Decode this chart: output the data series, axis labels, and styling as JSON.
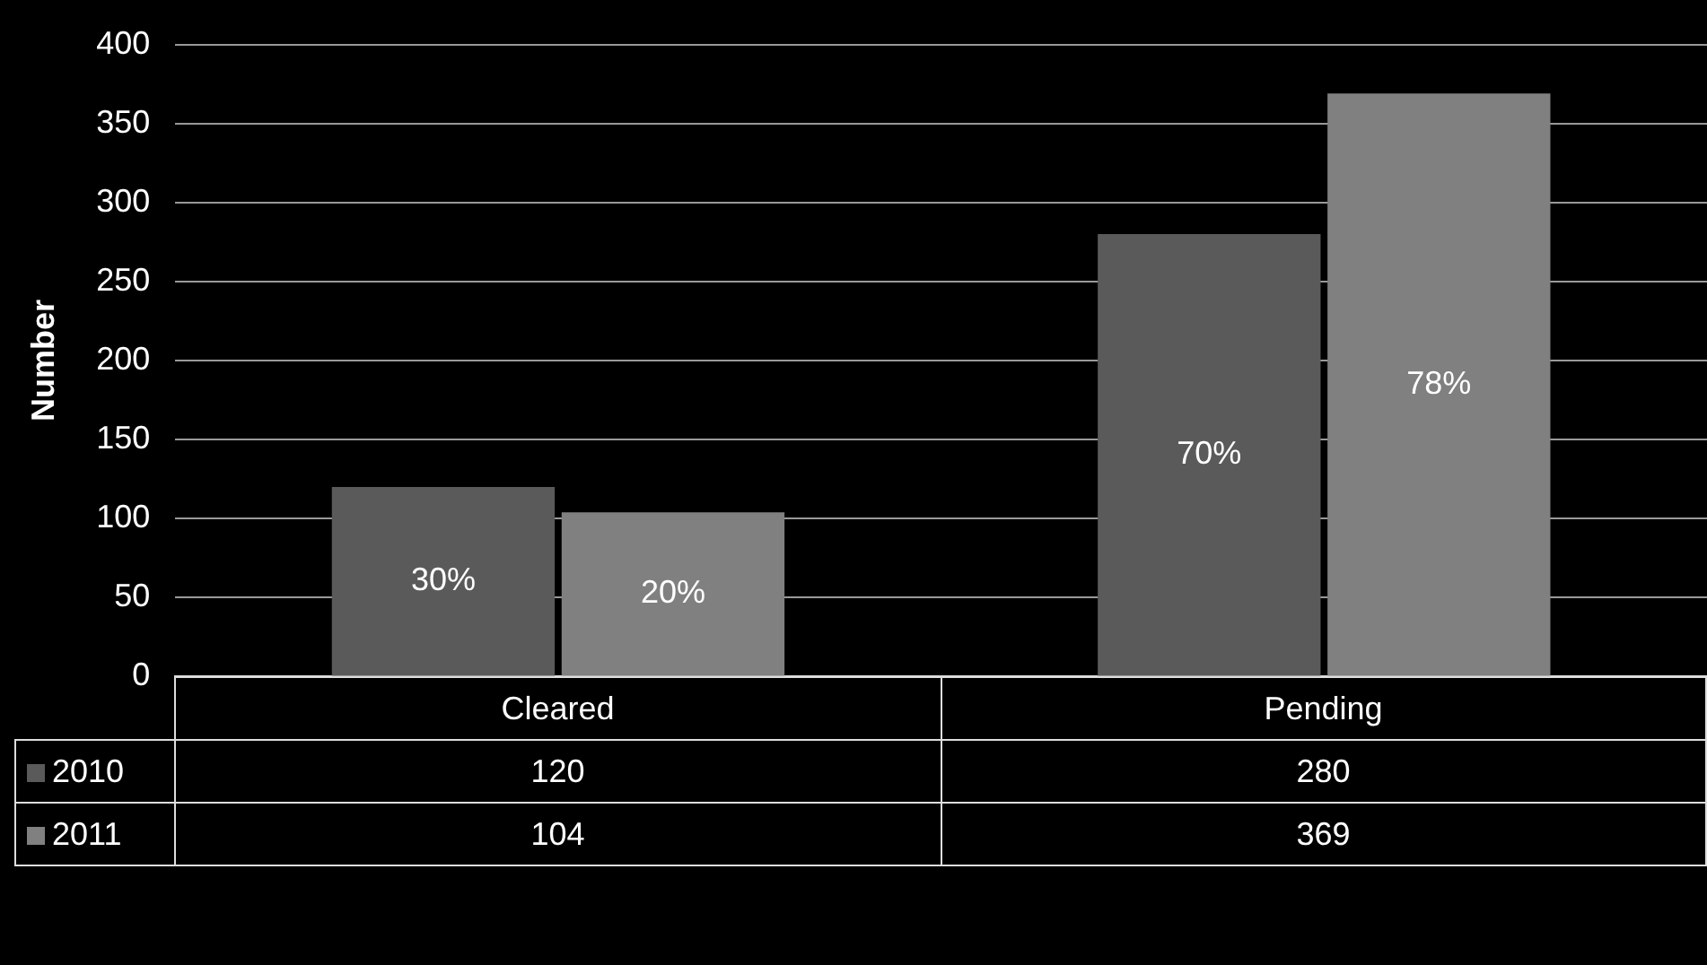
{
  "chart_data": {
    "type": "bar",
    "ylabel": "Number",
    "categories": [
      "Cleared",
      "Pending"
    ],
    "series": [
      {
        "name": "2010",
        "color": "#5a5a5a",
        "values": [
          120,
          280
        ]
      },
      {
        "name": "2011",
        "color": "#808080",
        "values": [
          104,
          369
        ]
      }
    ],
    "annotations": [
      "30%",
      "70%",
      "20%",
      "78%"
    ],
    "ylim": [
      0,
      400
    ],
    "yticks": [
      0,
      50,
      100,
      150,
      200,
      250,
      300,
      350,
      400
    ],
    "grid": "y",
    "legend": "bottom",
    "data_labels": true
  }
}
